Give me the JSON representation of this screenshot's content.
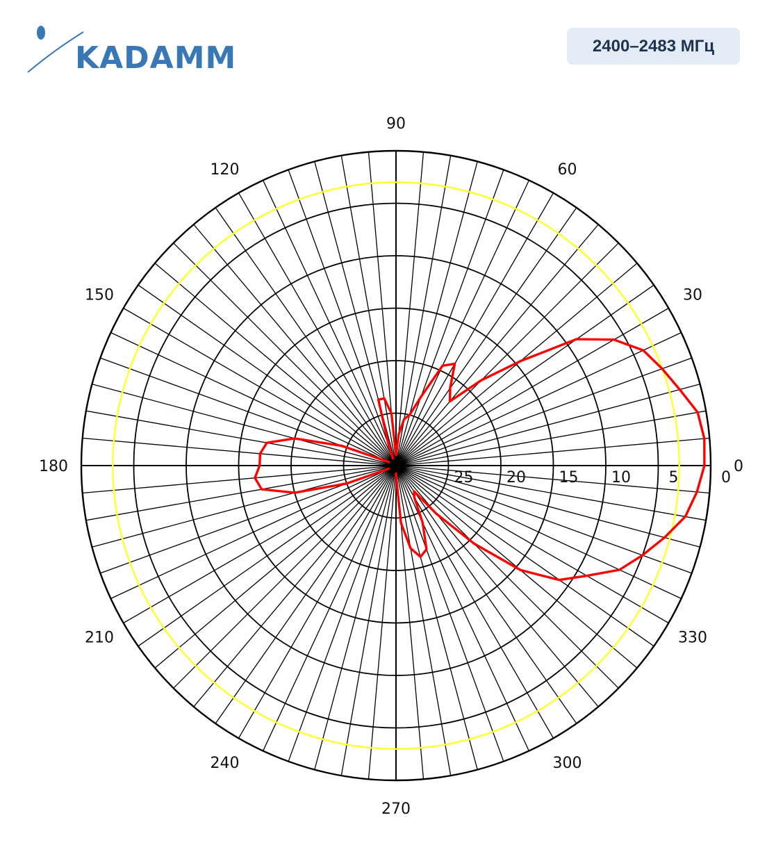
{
  "header": {
    "logo_text": "KADAMM",
    "band_label": "2400–2483 МГц"
  },
  "colors": {
    "trace": "#ff0000",
    "reference_ring": "#ffff33",
    "grid": "#000000",
    "logo": "#3a78b5",
    "badge_bg": "#e3ebf5",
    "badge_text": "#1f3250"
  },
  "chart_data": {
    "type": "polar-line",
    "title": "",
    "angle_unit": "degrees",
    "angle_labels": [
      "0",
      "30",
      "60",
      "90",
      "120",
      "150",
      "180",
      "210",
      "240",
      "270",
      "300",
      "330"
    ],
    "radial_labels": [
      "0",
      "5",
      "10",
      "15",
      "20",
      "25"
    ],
    "radial_axis": "attenuation in dB from the maximum, 0 at the outer edge",
    "radial_range": [
      0,
      30
    ],
    "reference_ring_db": 3,
    "series": [
      {
        "angles": [
          0,
          5,
          10,
          15,
          20,
          25,
          30,
          35,
          40,
          45,
          50,
          55,
          60,
          65,
          70,
          75,
          80,
          85,
          90,
          95,
          100,
          105,
          110,
          115,
          120,
          125,
          130,
          135,
          140,
          145,
          150,
          155,
          160,
          165,
          170,
          175,
          180,
          185,
          190,
          195,
          200,
          205,
          210,
          215,
          220,
          225,
          230,
          235,
          240,
          245,
          250,
          255,
          260,
          265,
          270,
          275,
          280,
          285,
          290,
          295,
          300,
          305,
          310,
          315,
          320,
          325,
          330,
          335,
          340,
          345,
          350,
          355
        ],
        "attenuation_db": [
          0.6,
          0.5,
          0.8,
          2.0,
          3.0,
          4.0,
          6.0,
          9.0,
          14.5,
          18.5,
          22.0,
          21.0,
          18.8,
          19.5,
          23.0,
          25.0,
          25.5,
          27.0,
          29.0,
          25.0,
          23.5,
          23.5,
          28.0,
          29.5,
          30.0,
          30.0,
          30.0,
          30.0,
          30.0,
          30.0,
          30.0,
          29.0,
          24.5,
          20.0,
          17.5,
          17.0,
          17.0,
          16.5,
          17.0,
          20.0,
          25.0,
          29.5,
          30.0,
          30.0,
          30.0,
          30.0,
          30.0,
          30.0,
          30.0,
          30.0,
          30.0,
          30.0,
          30.0,
          30.0,
          29.0,
          24.5,
          22.0,
          21.0,
          21.5,
          24.0,
          26.5,
          27.0,
          24.0,
          19.5,
          14.5,
          11.0,
          9.0,
          6.5,
          5.0,
          3.5,
          2.0,
          1.2
        ]
      }
    ]
  }
}
